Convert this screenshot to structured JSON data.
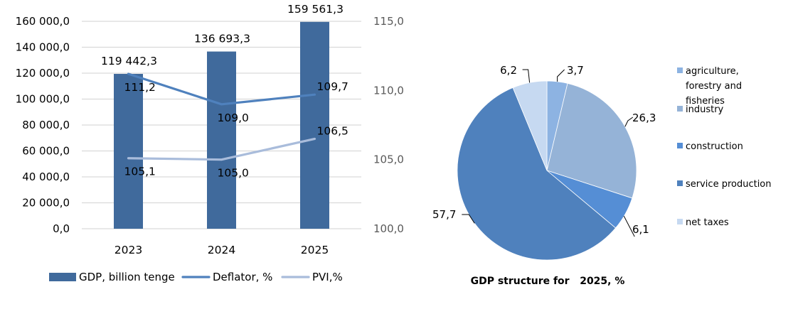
{
  "chart_data": [
    {
      "type": "bar",
      "categories": [
        "2023",
        "2024",
        "2025"
      ],
      "series": [
        {
          "name": "GDP, billion tenge",
          "kind": "bar",
          "axis": "left",
          "values": [
            119442.3,
            136693.3,
            159561.3
          ],
          "labels": [
            "119 442,3",
            "136 693,3",
            "159 561,3"
          ],
          "color": "#406A9C"
        },
        {
          "name": "Deflator, %",
          "kind": "line",
          "axis": "right",
          "values": [
            111.2,
            109.0,
            109.7
          ],
          "labels": [
            "111,2",
            "109,0",
            "109,7"
          ],
          "color": "#4F81BD"
        },
        {
          "name": "PVI,%",
          "kind": "line",
          "axis": "right",
          "values": [
            105.1,
            105.0,
            106.5
          ],
          "labels": [
            "105,1",
            "105,0",
            "106,5"
          ],
          "color": "#A9BCDB"
        }
      ],
      "ylim": [
        0,
        160000
      ],
      "yticks": [
        0,
        20000,
        40000,
        60000,
        80000,
        100000,
        120000,
        140000,
        160000
      ],
      "ytick_labels": [
        "0,0",
        "20 000,0",
        "40 000,0",
        "60 000,0",
        "80 000,0",
        "100 000,0",
        "120 000,0",
        "140 000,0",
        "160 000,0"
      ],
      "y2lim": [
        100,
        115
      ],
      "y2ticks": [
        100,
        105,
        110,
        115
      ],
      "y2tick_labels": [
        "100,0",
        "105,0",
        "110,0",
        "115,0"
      ],
      "grid": true,
      "legend": "bottom",
      "title": "",
      "xlabel": "",
      "ylabel": ""
    },
    {
      "type": "pie",
      "title": "GDP structure for   2025, %",
      "slices": [
        {
          "name": "agriculture, forestry and fisheries",
          "name_lines": [
            "agriculture,",
            "forestry and",
            "fisheries"
          ],
          "value": 3.7,
          "label": "3,7",
          "color": "#8DB3E2"
        },
        {
          "name": "industry",
          "name_lines": [
            "industry"
          ],
          "value": 26.3,
          "label": "26,3",
          "color": "#95B3D7"
        },
        {
          "name": "construction",
          "name_lines": [
            "construction"
          ],
          "value": 6.1,
          "label": "6,1",
          "color": "#558ED5"
        },
        {
          "name": "service production",
          "name_lines": [
            "service production"
          ],
          "value": 57.7,
          "label": "57,7",
          "color": "#4F81BD"
        },
        {
          "name": "net taxes",
          "name_lines": [
            "net taxes"
          ],
          "value": 6.2,
          "label": "6,2",
          "color": "#C6D9F1"
        }
      ],
      "legend": "right"
    }
  ]
}
